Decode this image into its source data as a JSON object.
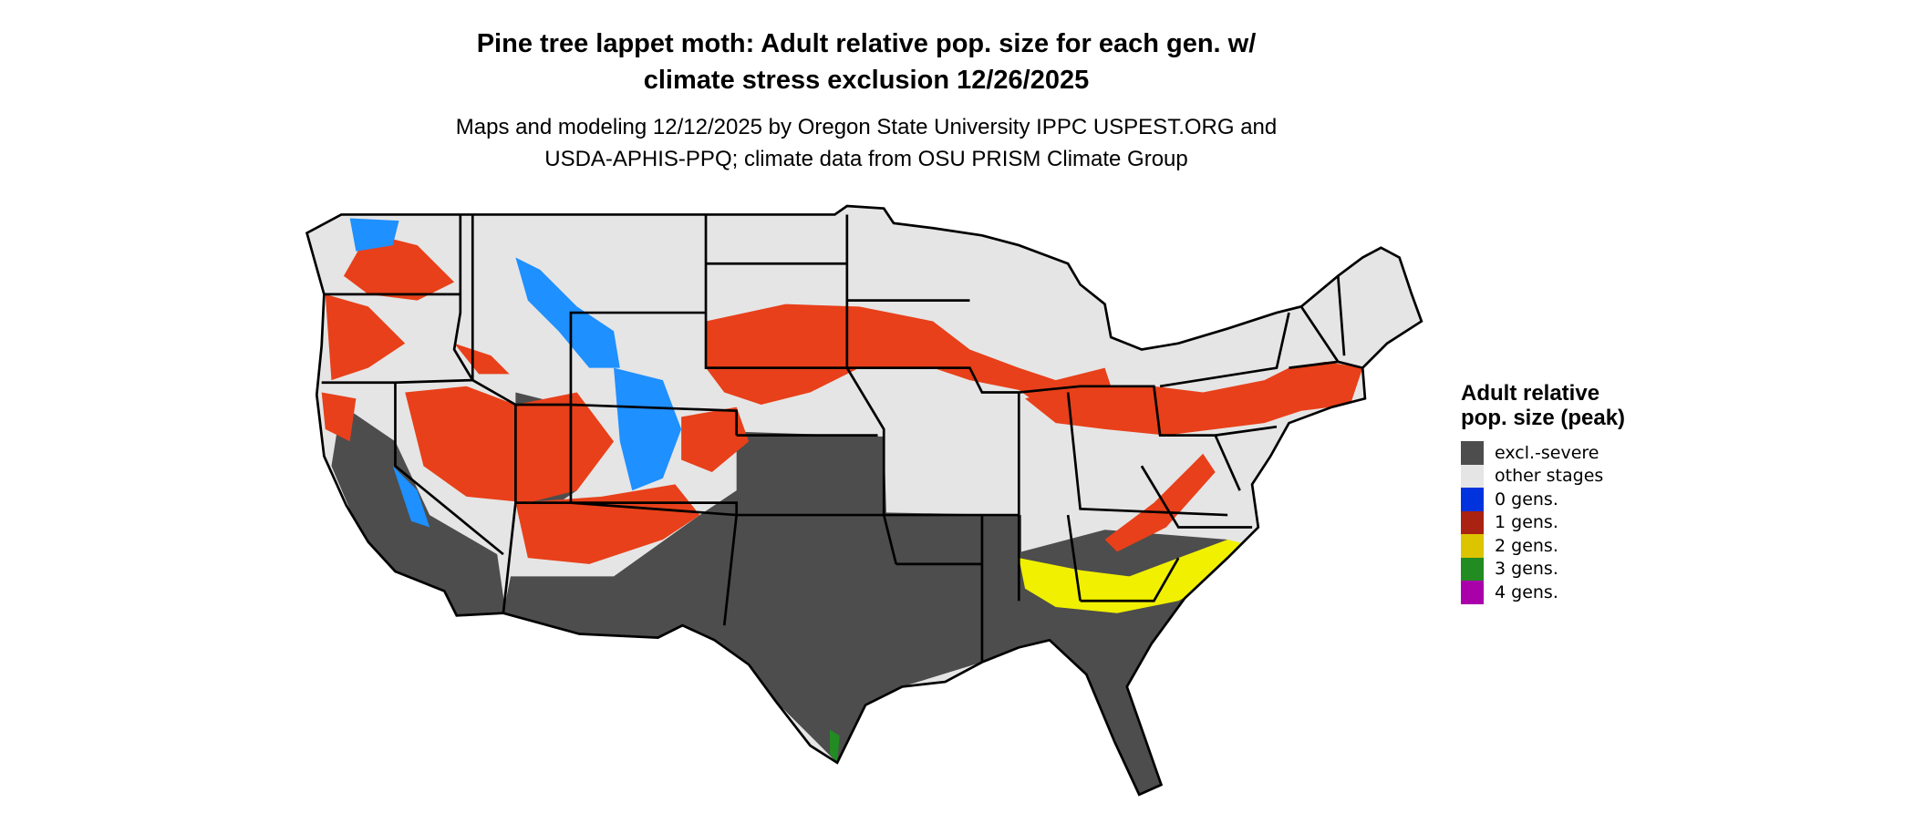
{
  "title_line1": "Pine tree lappet moth: Adult relative pop. size for each gen. w/",
  "title_line2": "climate stress exclusion 12/26/2025",
  "subtitle_line1": "Maps and modeling 12/12/2025 by Oregon State University IPPC USPEST.ORG and",
  "subtitle_line2": "USDA-APHIS-PPQ; climate data from OSU PRISM Climate Group",
  "legend": {
    "title": "Adult relative pop. size (peak)",
    "items": [
      {
        "label": "excl.-severe",
        "color": "#4d4d4d"
      },
      {
        "label": "other stages",
        "color": "#e5e5e5"
      },
      {
        "label": "0 gens.",
        "color": "#0033dd"
      },
      {
        "label": "1 gens.",
        "color": "#aa2211"
      },
      {
        "label": "2 gens.",
        "color": "#ddc400"
      },
      {
        "label": "3 gens.",
        "color": "#228b22"
      },
      {
        "label": "4 gens.",
        "color": "#aa00aa"
      }
    ]
  },
  "map_colors": {
    "background_land": "#e5e5e5",
    "excluded": "#4d4d4d",
    "one_gen": "#e8401a",
    "zero_gen": "#1e90ff",
    "two_gen": "#f0f000",
    "border": "#000000"
  }
}
